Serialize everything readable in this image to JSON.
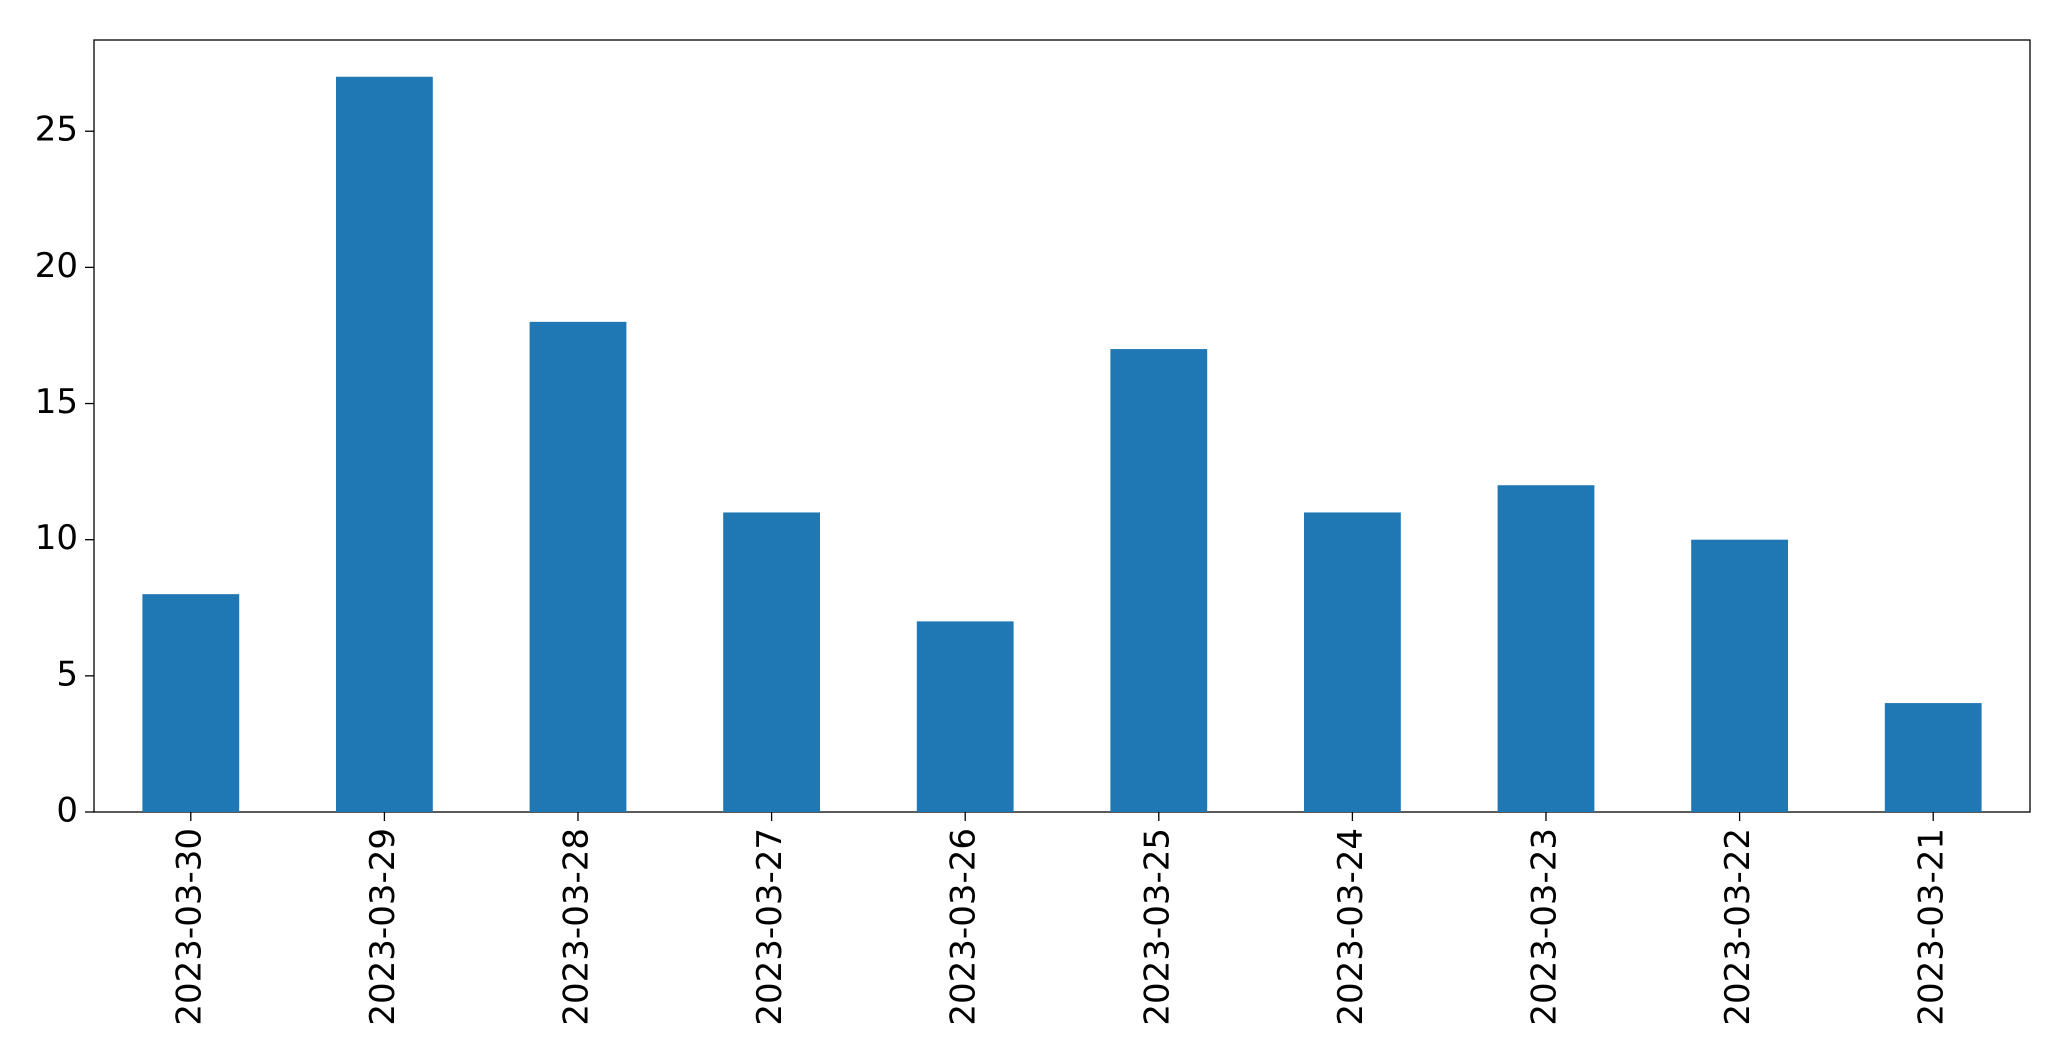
{
  "chart_data": {
    "type": "bar",
    "categories": [
      "2023-03-30",
      "2023-03-29",
      "2023-03-28",
      "2023-03-27",
      "2023-03-26",
      "2023-03-25",
      "2023-03-24",
      "2023-03-23",
      "2023-03-22",
      "2023-03-21"
    ],
    "values": [
      8,
      27,
      18,
      11,
      7,
      17,
      11,
      12,
      10,
      4
    ],
    "color": "#1f77b4",
    "ylim": [
      0,
      28.35
    ],
    "yticks": [
      0,
      5,
      10,
      15,
      20,
      25
    ],
    "grid": false
  }
}
